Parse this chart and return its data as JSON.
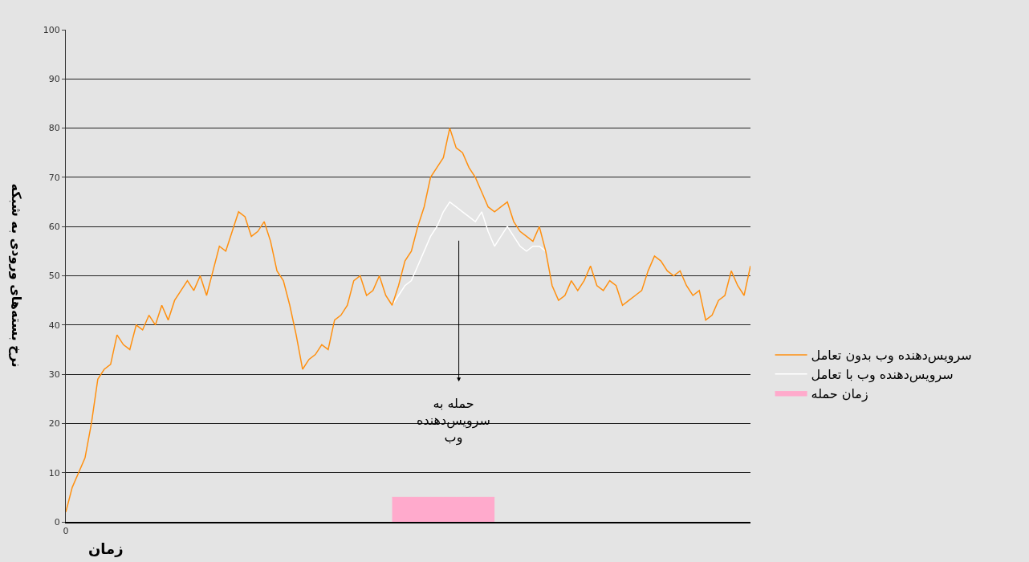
{
  "chart_data": {
    "type": "line",
    "ylabel": "نرخ بسته‌های ورودی به شبکه",
    "xlabel": "زمان",
    "categories": [
      "0",
      null,
      null,
      null,
      null,
      null,
      null,
      null,
      null,
      null,
      null,
      null,
      null,
      null,
      null,
      null,
      null,
      null,
      null,
      null,
      null,
      null,
      null,
      null,
      null,
      null,
      null,
      null,
      null,
      null,
      null,
      null,
      null,
      null,
      null,
      null,
      null,
      null,
      null,
      null,
      null,
      null,
      null,
      null,
      null,
      null,
      null,
      null,
      null,
      null,
      null,
      null,
      null,
      null,
      null,
      null,
      null,
      null,
      null,
      null,
      null,
      null,
      null,
      null,
      null,
      null,
      null,
      null,
      null,
      null,
      null,
      null,
      null,
      null,
      null,
      null,
      null,
      null,
      null,
      null,
      null,
      null,
      null,
      null,
      null,
      null,
      null,
      null,
      null,
      null,
      null,
      null,
      null,
      null,
      null,
      null,
      null,
      null,
      null,
      null,
      null,
      null,
      null,
      null,
      null,
      null,
      null,
      null
    ],
    "series": [
      {
        "name": "زمان حمله",
        "type": "area",
        "color": "#ffaacc",
        "values": [
          null,
          null,
          null,
          null,
          null,
          null,
          null,
          null,
          null,
          null,
          null,
          null,
          null,
          null,
          null,
          null,
          null,
          null,
          null,
          null,
          null,
          null,
          null,
          null,
          null,
          null,
          null,
          null,
          null,
          null,
          null,
          null,
          null,
          null,
          null,
          null,
          null,
          null,
          null,
          null,
          null,
          null,
          null,
          null,
          null,
          null,
          null,
          null,
          null,
          null,
          null,
          5,
          5,
          5,
          5,
          5,
          5,
          5,
          5,
          5,
          5,
          5,
          5,
          5,
          5,
          5,
          5,
          5,
          null,
          null,
          null,
          null,
          null,
          null,
          null,
          null,
          null,
          null,
          null,
          null,
          null,
          null,
          null,
          null,
          null,
          null,
          null,
          null,
          null,
          null,
          null,
          null,
          null,
          null,
          null,
          null,
          null,
          null,
          null,
          null,
          null,
          null,
          null,
          null,
          null,
          null,
          null,
          null
        ]
      },
      {
        "name": "سرویس‌دهنده وب با تعامل",
        "color": "#ffffff",
        "values": [
          null,
          null,
          null,
          null,
          null,
          null,
          null,
          null,
          null,
          null,
          null,
          null,
          null,
          null,
          null,
          null,
          null,
          null,
          null,
          null,
          null,
          null,
          null,
          null,
          null,
          null,
          null,
          null,
          null,
          null,
          null,
          null,
          null,
          null,
          null,
          null,
          null,
          null,
          null,
          null,
          null,
          null,
          null,
          null,
          null,
          null,
          null,
          null,
          null,
          null,
          null,
          44,
          46,
          48,
          49,
          52,
          55,
          58,
          60,
          63,
          65,
          64,
          63,
          62,
          61,
          63,
          59,
          56,
          58,
          60,
          58,
          56,
          55,
          56,
          56,
          55,
          null,
          null,
          null,
          null,
          null,
          null,
          null,
          null,
          null,
          null,
          null,
          null,
          null,
          null,
          null,
          null,
          null,
          null,
          null,
          null,
          null,
          null,
          null,
          null,
          null,
          null,
          null,
          null,
          null,
          null,
          null,
          null
        ]
      },
      {
        "name": "سرویس‌دهنده وب بدون تعامل",
        "color": "#ff9010",
        "values": [
          2,
          7,
          10,
          13,
          20,
          29,
          31,
          32,
          38,
          36,
          35,
          40,
          39,
          42,
          40,
          44,
          41,
          45,
          47,
          49,
          47,
          50,
          46,
          51,
          56,
          55,
          59,
          63,
          62,
          58,
          59,
          61,
          57,
          51,
          49,
          44,
          38,
          31,
          33,
          34,
          36,
          35,
          41,
          42,
          44,
          49,
          50,
          46,
          47,
          50,
          46,
          44,
          48,
          53,
          55,
          60,
          64,
          70,
          72,
          74,
          80,
          76,
          75,
          72,
          70,
          67,
          64,
          63,
          64,
          65,
          61,
          59,
          58,
          57,
          60,
          55,
          48,
          45,
          46,
          49,
          47,
          49,
          52,
          48,
          47,
          49,
          48,
          44,
          45,
          46,
          47,
          51,
          54,
          53,
          51,
          50,
          51,
          48,
          46,
          47,
          41,
          42,
          45,
          46,
          51,
          48,
          46,
          52
        ]
      }
    ],
    "annotations": [
      "حمله به سرویس‌دهنده وب"
    ],
    "ylim": [
      0,
      100
    ],
    "yticks": [
      0,
      10,
      20,
      30,
      40,
      50,
      60,
      70,
      80,
      90,
      100
    ],
    "grid": "y",
    "legend": "right",
    "marker": "none",
    "line_style": "solid"
  }
}
